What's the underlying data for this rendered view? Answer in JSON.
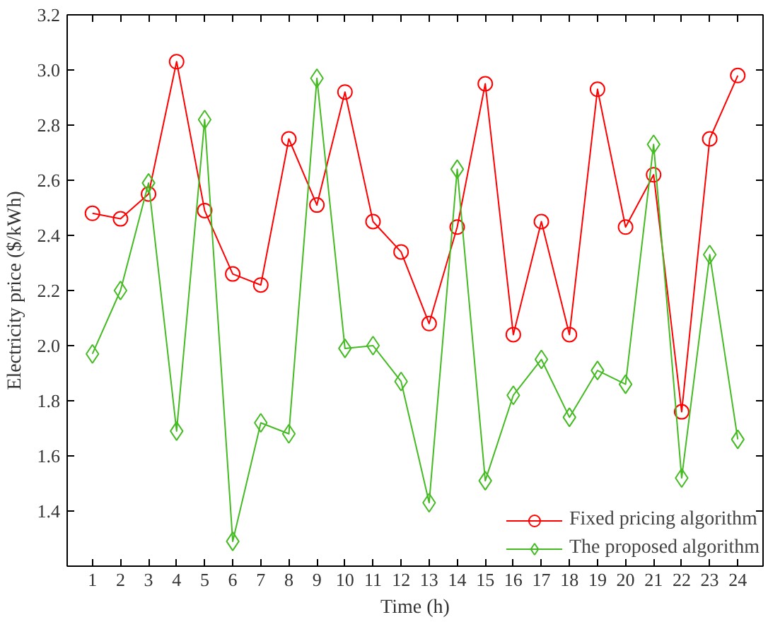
{
  "chart_data": {
    "type": "line",
    "xlabel": "Time (h)",
    "ylabel": "Electricity price ($/kWh)",
    "x": [
      1,
      2,
      3,
      4,
      5,
      6,
      7,
      8,
      9,
      10,
      11,
      12,
      13,
      14,
      15,
      16,
      17,
      18,
      19,
      20,
      21,
      22,
      23,
      24
    ],
    "xlim": [
      0.1,
      24.9
    ],
    "xticks": [
      1,
      2,
      3,
      4,
      5,
      6,
      7,
      8,
      9,
      10,
      11,
      12,
      13,
      14,
      15,
      16,
      17,
      18,
      19,
      20,
      21,
      22,
      23,
      24
    ],
    "ylim": [
      1.2,
      3.2
    ],
    "yticks": [
      {
        "value": 1.2,
        "label": null
      },
      1.4,
      1.6,
      1.8,
      {
        "value": 2,
        "label": "2.0"
      },
      2.2,
      2.4,
      2.6,
      2.8,
      {
        "value": 3,
        "label": "3.0"
      },
      3.2
    ],
    "grid": false,
    "legend": "bottom right",
    "series": [
      {
        "name": "Fixed pricing algorithm",
        "color": "#ff0000",
        "marker": "circle",
        "values": [
          2.48,
          2.46,
          2.55,
          3.03,
          2.49,
          2.26,
          2.22,
          2.75,
          2.51,
          2.92,
          2.45,
          2.34,
          2.08,
          2.43,
          2.95,
          2.04,
          2.45,
          2.04,
          2.93,
          2.43,
          2.62,
          1.76,
          2.75,
          2.98
        ]
      },
      {
        "name": "The proposed algorithm",
        "color": "#44bb22",
        "marker": "diamond",
        "values": [
          1.97,
          2.2,
          2.59,
          1.69,
          2.82,
          1.29,
          1.72,
          1.68,
          2.97,
          1.99,
          2.0,
          1.87,
          1.43,
          2.64,
          1.51,
          1.82,
          1.95,
          1.74,
          1.91,
          1.86,
          2.73,
          1.52,
          2.33,
          1.66
        ]
      }
    ]
  }
}
